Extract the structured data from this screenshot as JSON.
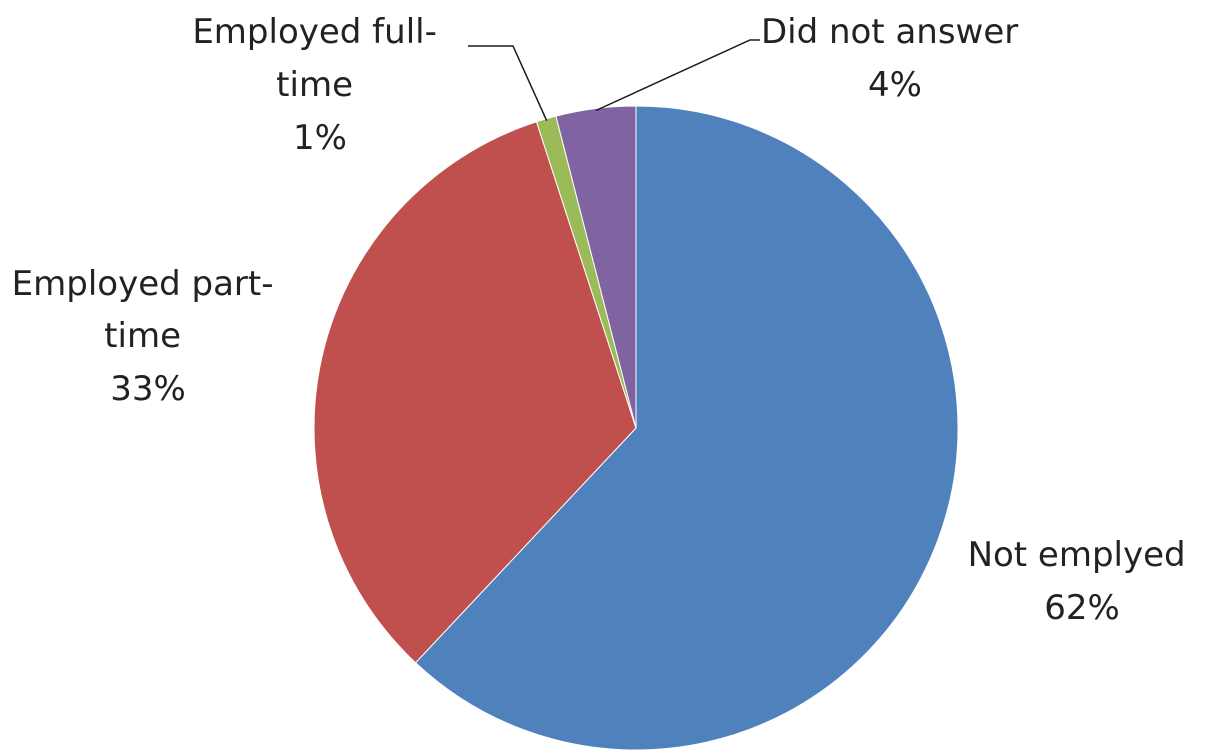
{
  "chart_data": {
    "type": "pie",
    "title": "",
    "start_angle_deg": 0,
    "direction": "clockwise",
    "legend": "none",
    "slices": [
      {
        "label_lines": [
          "Not emplyed"
        ],
        "percent_label": "62%",
        "value": 62,
        "color": "#4F81BD"
      },
      {
        "label_lines": [
          "Employed part-",
          "time"
        ],
        "percent_label": "33%",
        "value": 33,
        "color": "#C0504D"
      },
      {
        "label_lines": [
          "Employed full-",
          "time"
        ],
        "percent_label": "1%",
        "value": 1,
        "color": "#9BBB59"
      },
      {
        "label_lines": [
          "Did not answer"
        ],
        "percent_label": "4%",
        "value": 4,
        "color": "#8064A2"
      }
    ]
  }
}
